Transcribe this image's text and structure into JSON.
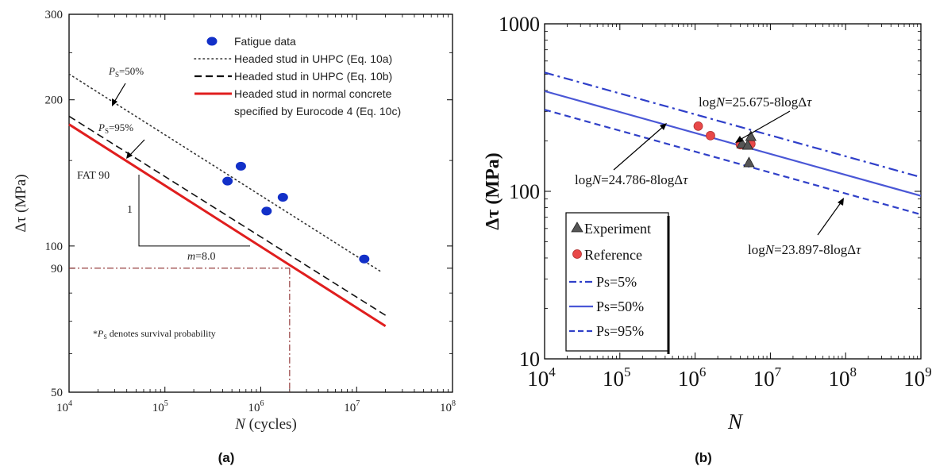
{
  "chart_data": [
    {
      "panel": "a",
      "panel_label": "(a)",
      "type": "line",
      "scale": "log-log",
      "xlabel_italic": "N",
      "xlabel_rest": " (cycles)",
      "ylabel": "Δτ (MPa)",
      "xlim": [
        10000,
        100000000
      ],
      "ylim": [
        50,
        300
      ],
      "x_ticks": [
        {
          "value": 10000,
          "base": "10",
          "exp": "4"
        },
        {
          "value": 100000,
          "base": "10",
          "exp": "5"
        },
        {
          "value": 1000000,
          "base": "10",
          "exp": "6"
        },
        {
          "value": 10000000,
          "base": "10",
          "exp": "7"
        },
        {
          "value": 100000000,
          "base": "10",
          "exp": "8"
        }
      ],
      "y_ticks": [
        {
          "value": 50,
          "label": "50"
        },
        {
          "value": 90,
          "label": "90"
        },
        {
          "value": 100,
          "label": "100"
        },
        {
          "value": 200,
          "label": "200"
        },
        {
          "value": 300,
          "label": "300"
        }
      ],
      "grid": false,
      "legend_position": "top-right",
      "series": [
        {
          "name": "Fatigue data",
          "kind": "scatter",
          "color": "#1230c8",
          "x": [
            450000,
            620000,
            1150000,
            1700000,
            12000000
          ],
          "y": [
            136,
            146,
            118,
            126,
            94
          ]
        },
        {
          "name": "Headed stud in UHPC (Eq. 10a)",
          "kind": "line",
          "style": "dotted",
          "color": "#333333",
          "x": [
            10000,
            18000000
          ],
          "y": [
            226,
            88.5
          ]
        },
        {
          "name": "Headed stud in UHPC (Eq. 10b)",
          "kind": "line",
          "style": "dashed",
          "color": "#111111",
          "x": [
            10000,
            20000000
          ],
          "y": [
            185,
            72
          ]
        },
        {
          "name": "Headed stud in normal concrete",
          "name_line2": "specified by Eurocode 4 (Eq. 10c)",
          "kind": "line",
          "style": "solid",
          "color": "#e01e1e",
          "x": [
            10000,
            20000000
          ],
          "y": [
            178,
            68.4
          ]
        }
      ],
      "annotations": {
        "ps50": "=50%",
        "ps95": "=95%",
        "ps_symbol": "P",
        "ps_sub": "S",
        "fat": "FAT 90",
        "slope_one": "1",
        "slope_m_italic": "m",
        "slope_m_rest": "=8.0",
        "footnote_prefix": "*",
        "footnote_rest": " denotes survival probability",
        "ref_point": {
          "x": 2000000,
          "y": 90
        }
      }
    },
    {
      "panel": "b",
      "panel_label": "(b)",
      "type": "line",
      "scale": "log-log",
      "xlabel_italic": "N",
      "ylabel": "Δτ (MPa)",
      "xlim": [
        10000,
        1000000000
      ],
      "ylim": [
        10,
        1000
      ],
      "x_ticks": [
        {
          "value": 10000,
          "base": "10",
          "exp": "4"
        },
        {
          "value": 100000,
          "base": "10",
          "exp": "5"
        },
        {
          "value": 1000000,
          "base": "10",
          "exp": "6"
        },
        {
          "value": 10000000,
          "base": "10",
          "exp": "7"
        },
        {
          "value": 100000000,
          "base": "10",
          "exp": "8"
        },
        {
          "value": 1000000000,
          "base": "10",
          "exp": "9"
        }
      ],
      "y_ticks": [
        {
          "value": 10,
          "label": "10"
        },
        {
          "value": 100,
          "label": "100"
        },
        {
          "value": 1000,
          "label": "1000"
        }
      ],
      "grid": false,
      "legend_position": "bottom-left",
      "series": [
        {
          "name": "Experiment",
          "kind": "scatter",
          "marker": "triangle",
          "color": "#555555",
          "x": [
            4200000,
            5000000,
            5500000,
            5200000
          ],
          "y": [
            192,
            188,
            212,
            148
          ]
        },
        {
          "name": "Reference",
          "kind": "scatter",
          "marker": "circle",
          "color": "#e84848",
          "x": [
            1100000,
            1600000,
            4000000,
            5500000
          ],
          "y": [
            245,
            215,
            190,
            192
          ]
        },
        {
          "name": "Ps=5%",
          "kind": "line",
          "style": "dashdot",
          "color": "#2f3fc9",
          "intercept": 25.675,
          "slope": 8
        },
        {
          "name": "Ps=50%",
          "kind": "line",
          "style": "solid",
          "color": "#4a57d6",
          "intercept": 24.786,
          "slope": 8
        },
        {
          "name": "Ps=95%",
          "kind": "line",
          "style": "dashed",
          "color": "#3040c8",
          "intercept": 23.897,
          "slope": 8
        }
      ],
      "annotations": {
        "eq5_prefix": "log",
        "eq5_italic": "N",
        "eq5_rest": "=25.675-8logΔ",
        "eq5_tau": "τ",
        "eq50_prefix": "log",
        "eq50_italic": "N",
        "eq50_rest": "=24.786-8logΔ",
        "eq50_tau": "τ",
        "eq95_prefix": "log",
        "eq95_italic": "N",
        "eq95_rest": "=23.897-8logΔ",
        "eq95_tau": "τ"
      }
    }
  ]
}
